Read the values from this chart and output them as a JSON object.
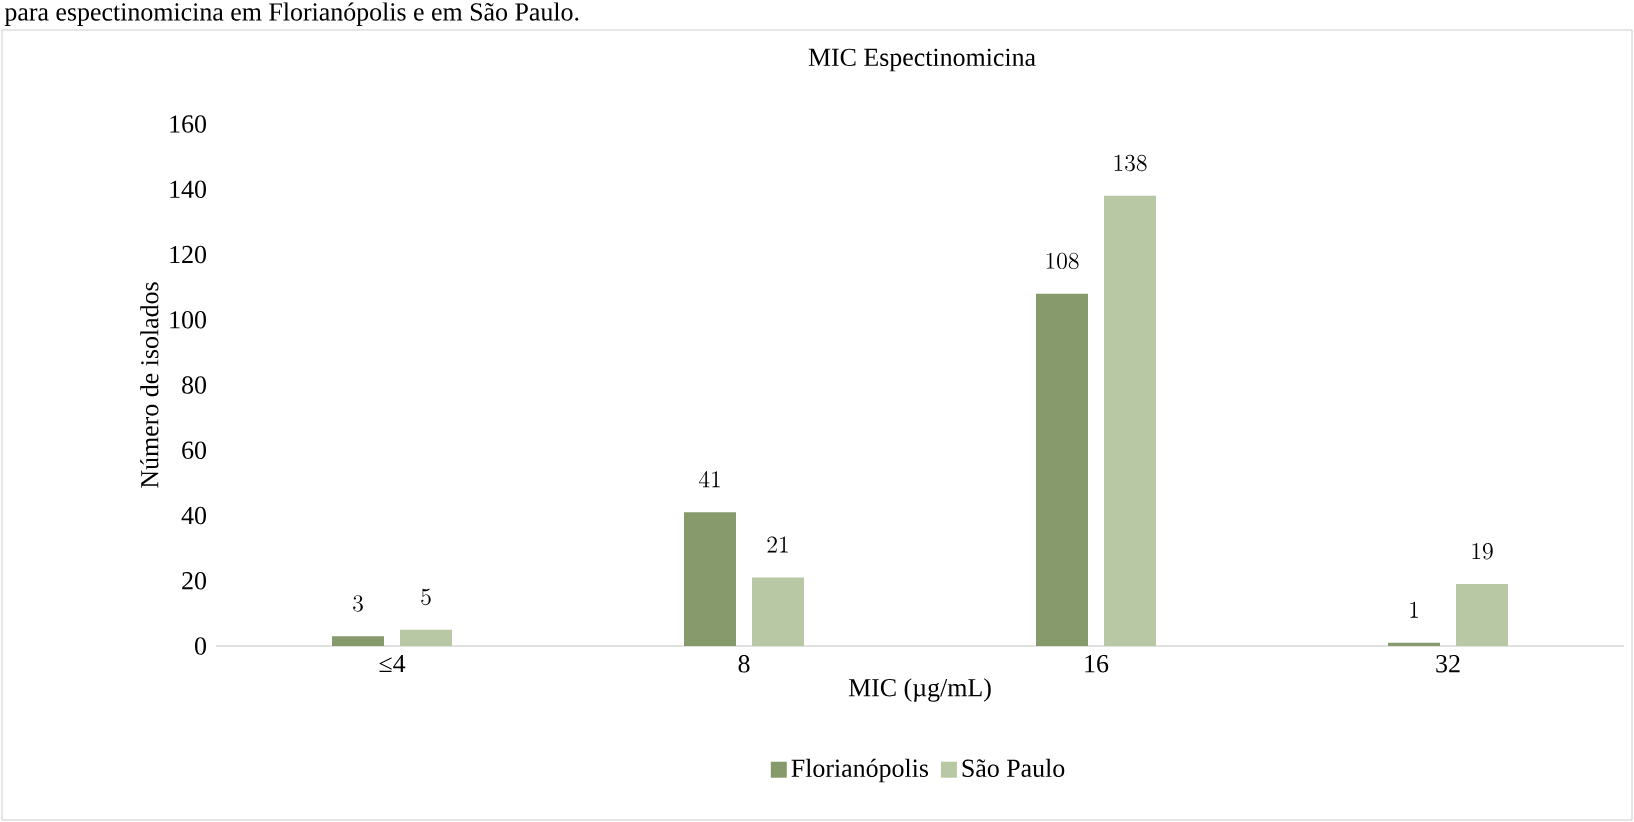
{
  "chart_data": {
    "type": "bar",
    "title": "MIC Espectinomicina",
    "annotations": [
      "para espectinomicina em Florianópolis e em São Paulo."
    ],
    "xlabel": "MIC (µg/mL)",
    "ylabel": "Número de isolados",
    "categories": [
      "≤4",
      "8",
      "16",
      "32"
    ],
    "series": [
      {
        "name": "Florianópolis",
        "color": "#879a6b",
        "values": [
          3,
          41,
          108,
          1
        ]
      },
      {
        "name": "São Paulo",
        "color": "#b8c8a4",
        "values": [
          5,
          21,
          138,
          19
        ]
      }
    ],
    "ylim": [
      0,
      160
    ],
    "yticks": [
      0,
      20,
      40,
      60,
      80,
      100,
      120,
      140,
      160
    ],
    "data_labels": true,
    "legend": "bottom",
    "grid": false
  }
}
